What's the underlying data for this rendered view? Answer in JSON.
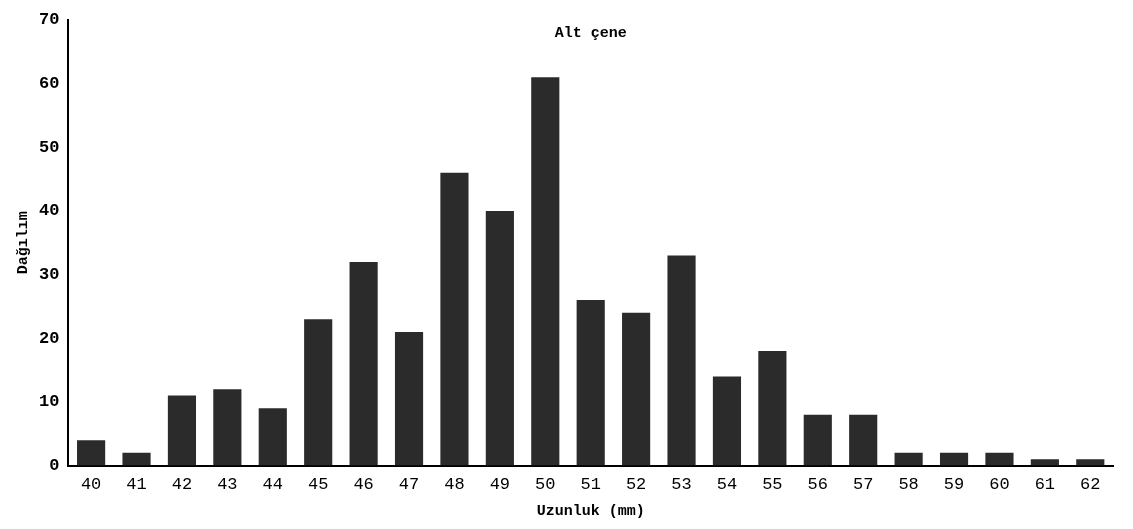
{
  "chart_data": {
    "type": "bar",
    "title": "Alt çene",
    "xlabel": "Uzunluk (mm)",
    "ylabel": "Dağılım",
    "categories": [
      "40",
      "41",
      "42",
      "43",
      "44",
      "45",
      "46",
      "47",
      "48",
      "49",
      "50",
      "51",
      "52",
      "53",
      "54",
      "55",
      "56",
      "57",
      "58",
      "59",
      "60",
      "61",
      "62"
    ],
    "values": [
      4,
      2,
      11,
      12,
      9,
      23,
      32,
      21,
      46,
      40,
      61,
      26,
      24,
      33,
      14,
      18,
      8,
      8,
      2,
      2,
      2,
      1,
      1
    ],
    "color": "#2b2b2b",
    "ylim": [
      0,
      70
    ],
    "yticks": [
      0,
      10,
      20,
      30,
      40,
      50,
      60,
      70
    ],
    "grid": false,
    "legend": false
  }
}
